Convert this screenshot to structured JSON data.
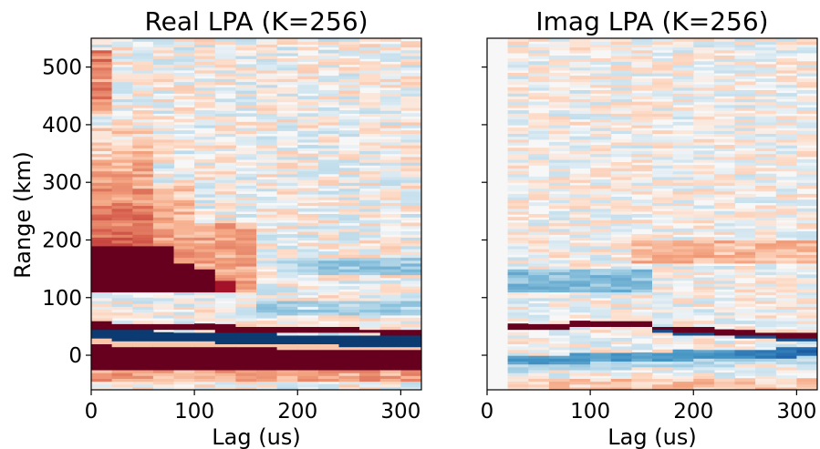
{
  "chart_data": [
    {
      "type": "heatmap",
      "title": "Real LPA (K=256)",
      "xlabel": "Lag (us)",
      "ylabel": "Range (km)",
      "xlim": [
        0,
        320
      ],
      "ylim": [
        -60,
        550
      ],
      "xticks": [
        0,
        100,
        200,
        300
      ],
      "yticks": [
        0,
        100,
        200,
        300,
        400,
        500
      ],
      "colormap": "RdBu_r",
      "lag_bins": [
        0,
        20,
        40,
        60,
        80,
        100,
        120,
        140,
        160,
        180,
        200,
        220,
        240,
        260,
        280,
        300
      ],
      "lag_bin_width": 20,
      "bands": [
        {
          "range": [
            -25,
            20
          ],
          "lag": [
            0,
            320
          ],
          "value": 1.0,
          "desc": "strong positive, top edge tilts from ~20 at lag 0 to ~10 at lag 320"
        },
        {
          "range": [
            20,
            45
          ],
          "lag": [
            0,
            320
          ],
          "value": -0.9,
          "desc": "strong negative band descending with lag"
        },
        {
          "range": [
            45,
            58
          ],
          "lag": [
            0,
            320
          ],
          "value": 1.0,
          "desc": "strong positive"
        },
        {
          "range": [
            110,
            190
          ],
          "lag": [
            0,
            80
          ],
          "value": 1.0
        },
        {
          "range": [
            110,
            155
          ],
          "lag": [
            80,
            120
          ],
          "value": 1.0
        },
        {
          "range": [
            110,
            130
          ],
          "lag": [
            120,
            140
          ],
          "value": 0.8
        },
        {
          "range": [
            100,
            420
          ],
          "lag": [
            0,
            60
          ],
          "value": 0.45
        },
        {
          "range": [
            100,
            300
          ],
          "lag": [
            60,
            140
          ],
          "value": 0.3
        },
        {
          "range": [
            140,
            170
          ],
          "lag": [
            180,
            320
          ],
          "value": -0.3
        }
      ]
    },
    {
      "type": "heatmap",
      "title": "Imag LPA (K=256)",
      "xlabel": "Lag (us)",
      "ylabel": "",
      "xlim": [
        0,
        320
      ],
      "ylim": [
        -60,
        550
      ],
      "xticks": [
        0,
        100,
        200,
        300
      ],
      "yticks": [
        0,
        100,
        200,
        300,
        400,
        500
      ],
      "colormap": "RdBu_r",
      "lag_bins": [
        0,
        20,
        40,
        60,
        80,
        100,
        120,
        140,
        160,
        180,
        200,
        220,
        240,
        260,
        280,
        300
      ],
      "lag_bin_width": 20,
      "bands": [
        {
          "range": [
            -60,
            550
          ],
          "lag": [
            0,
            20
          ],
          "value": 0.0
        },
        {
          "range": [
            45,
            60
          ],
          "lag": [
            20,
            160
          ],
          "value": 1.0,
          "desc": "dark red, rising from ~50 to ~57"
        },
        {
          "range": [
            25,
            45
          ],
          "lag": [
            150,
            320
          ],
          "value": 1.0,
          "desc": "dark red, descending to ~30"
        },
        {
          "range": [
            -15,
            10
          ],
          "lag": [
            20,
            320
          ],
          "value": -0.45,
          "desc": "blue band, rising from ~-10 to ~5"
        },
        {
          "range": [
            110,
            150
          ],
          "lag": [
            20,
            160
          ],
          "value": -0.3
        }
      ]
    }
  ]
}
